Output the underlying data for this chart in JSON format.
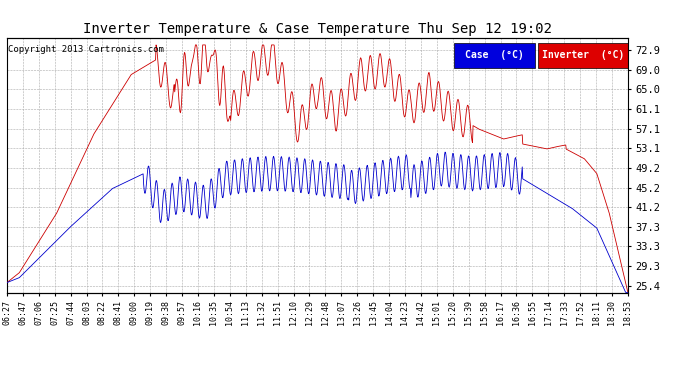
{
  "title": "Inverter Temperature & Case Temperature Thu Sep 12 19:02",
  "copyright": "Copyright 2013 Cartronics.com",
  "legend_case_label": "Case  (°C)",
  "legend_inverter_label": "Inverter  (°C)",
  "legend_case_bg": "#0000dd",
  "legend_inverter_bg": "#dd0000",
  "yticks": [
    25.4,
    29.3,
    33.3,
    37.3,
    41.2,
    45.2,
    49.2,
    53.1,
    57.1,
    61.1,
    65.0,
    69.0,
    72.9
  ],
  "ylim": [
    24.0,
    75.5
  ],
  "background_color": "#ffffff",
  "grid_color": "#aaaaaa",
  "plot_bg": "#ffffff",
  "line_color_case": "#0000cc",
  "line_color_inverter": "#cc0000",
  "xtick_labels": [
    "06:27",
    "06:47",
    "07:06",
    "07:25",
    "07:44",
    "08:03",
    "08:22",
    "08:41",
    "09:00",
    "09:19",
    "09:38",
    "09:57",
    "10:16",
    "10:35",
    "10:54",
    "11:13",
    "11:32",
    "11:51",
    "12:10",
    "12:29",
    "12:48",
    "13:07",
    "13:26",
    "13:45",
    "14:04",
    "14:23",
    "14:42",
    "15:01",
    "15:20",
    "15:39",
    "15:58",
    "16:17",
    "16:36",
    "16:55",
    "17:14",
    "17:33",
    "17:52",
    "18:11",
    "18:30",
    "18:53"
  ]
}
